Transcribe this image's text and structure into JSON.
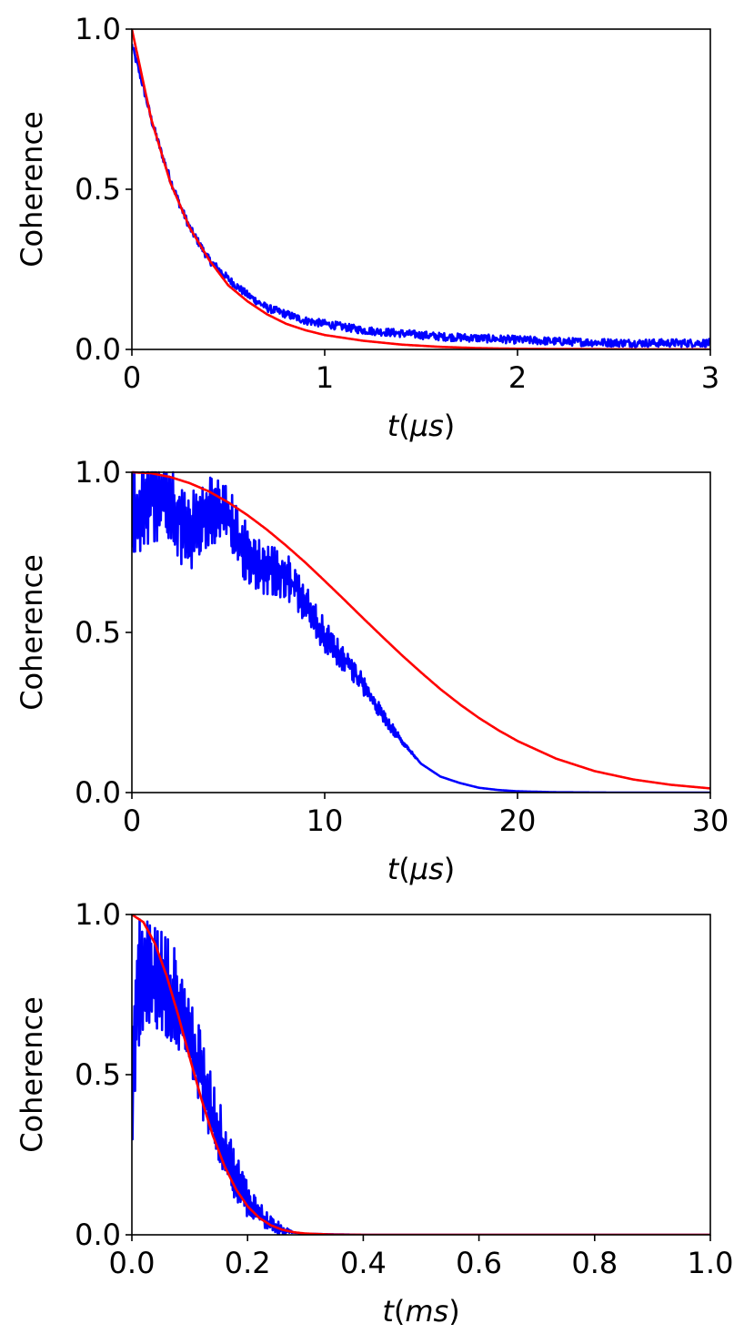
{
  "chart_data": [
    {
      "type": "line",
      "ylabel": "Coherence",
      "xlabel_var": "t",
      "xlabel_unit": "(μs)",
      "xlim": [
        0,
        3
      ],
      "ylim": [
        0,
        1
      ],
      "xticks": [
        "0",
        "1",
        "2",
        "3"
      ],
      "yticks": [
        "0.0",
        "0.5",
        "1.0"
      ],
      "grid": false,
      "series": [
        {
          "color": "#0000ff",
          "style": "noisy-data",
          "x": [
            0,
            0.05,
            0.1,
            0.15,
            0.2,
            0.25,
            0.3,
            0.4,
            0.5,
            0.6,
            0.7,
            0.8,
            0.9,
            1.0,
            1.1,
            1.2,
            1.3,
            1.4,
            1.5,
            1.6,
            1.8,
            2.0,
            2.2,
            2.4,
            2.6,
            2.8,
            3.0
          ],
          "values": [
            0.95,
            0.84,
            0.72,
            0.62,
            0.53,
            0.45,
            0.38,
            0.28,
            0.22,
            0.17,
            0.13,
            0.11,
            0.09,
            0.08,
            0.07,
            0.06,
            0.055,
            0.05,
            0.045,
            0.04,
            0.035,
            0.03,
            0.025,
            0.022,
            0.02,
            0.02,
            0.02
          ]
        },
        {
          "color": "#ff0000",
          "style": "fit",
          "x": [
            0,
            0.1,
            0.2,
            0.3,
            0.4,
            0.5,
            0.6,
            0.7,
            0.8,
            0.9,
            1.0,
            1.2,
            1.4,
            1.6,
            1.8,
            2.0,
            2.5,
            3.0
          ],
          "values": [
            1.0,
            0.72,
            0.52,
            0.38,
            0.28,
            0.2,
            0.15,
            0.11,
            0.08,
            0.06,
            0.045,
            0.027,
            0.015,
            0.008,
            0.004,
            0.002,
            0.0005,
            0.0001
          ]
        }
      ]
    },
    {
      "type": "line",
      "ylabel": "Coherence",
      "xlabel_var": "t",
      "xlabel_unit": "(μs)",
      "xlim": [
        0,
        30
      ],
      "ylim": [
        0,
        1
      ],
      "xticks": [
        "0",
        "10",
        "20",
        "30"
      ],
      "yticks": [
        "0.0",
        "0.5",
        "1.0"
      ],
      "grid": false,
      "series": [
        {
          "color": "#0000ff",
          "style": "oscillating-data",
          "x": [
            0,
            1,
            2,
            3,
            4,
            5,
            6,
            7,
            8,
            9,
            10,
            11,
            12,
            13,
            14,
            15,
            16,
            17,
            18,
            19,
            20,
            22,
            25,
            30
          ],
          "values": [
            0.86,
            0.88,
            0.9,
            0.85,
            0.87,
            0.82,
            0.76,
            0.72,
            0.66,
            0.58,
            0.5,
            0.42,
            0.33,
            0.24,
            0.16,
            0.09,
            0.05,
            0.03,
            0.015,
            0.008,
            0.004,
            0.001,
            0.0,
            0.0
          ]
        },
        {
          "color": "#ff0000",
          "style": "fit",
          "x": [
            0,
            1,
            2,
            3,
            4,
            5,
            6,
            7,
            8,
            9,
            10,
            11,
            12,
            13,
            14,
            15,
            16,
            17,
            18,
            19,
            20,
            22,
            24,
            26,
            28,
            30
          ],
          "values": [
            1.0,
            0.997,
            0.985,
            0.966,
            0.94,
            0.906,
            0.866,
            0.821,
            0.771,
            0.718,
            0.661,
            0.603,
            0.544,
            0.486,
            0.429,
            0.375,
            0.323,
            0.276,
            0.233,
            0.195,
            0.161,
            0.106,
            0.067,
            0.041,
            0.024,
            0.013
          ]
        }
      ]
    },
    {
      "type": "line",
      "ylabel": "Coherence",
      "xlabel_var": "t",
      "xlabel_unit": "(ms)",
      "xlim": [
        0,
        1
      ],
      "ylim": [
        0,
        1
      ],
      "xticks": [
        "0.0",
        "0.2",
        "0.4",
        "0.6",
        "0.8",
        "1.0"
      ],
      "yticks": [
        "0.0",
        "0.5",
        "1.0"
      ],
      "grid": false,
      "series": [
        {
          "color": "#0000ff",
          "style": "spiky-data",
          "x": [
            0,
            0.01,
            0.02,
            0.04,
            0.06,
            0.08,
            0.1,
            0.12,
            0.14,
            0.16,
            0.18,
            0.2,
            0.22,
            0.24,
            0.26,
            0.28,
            0.3,
            0.4,
            0.6,
            0.8,
            1.0
          ],
          "values": [
            0.45,
            0.78,
            0.82,
            0.8,
            0.77,
            0.72,
            0.62,
            0.5,
            0.38,
            0.27,
            0.18,
            0.11,
            0.06,
            0.03,
            0.015,
            0.007,
            0.003,
            0.0,
            0.0,
            0.0,
            0.0
          ]
        },
        {
          "color": "#ff0000",
          "style": "fit",
          "x": [
            0,
            0.02,
            0.04,
            0.06,
            0.08,
            0.1,
            0.12,
            0.14,
            0.16,
            0.18,
            0.2,
            0.22,
            0.24,
            0.26,
            0.28,
            0.3,
            0.35,
            0.4,
            0.5,
            0.6,
            0.8,
            1.0
          ],
          "values": [
            1.0,
            0.976,
            0.909,
            0.809,
            0.686,
            0.553,
            0.425,
            0.31,
            0.215,
            0.142,
            0.089,
            0.053,
            0.03,
            0.016,
            0.008,
            0.004,
            0.0006,
            0.0001,
            0.0,
            0.0,
            0.0,
            0.0
          ]
        }
      ]
    }
  ]
}
